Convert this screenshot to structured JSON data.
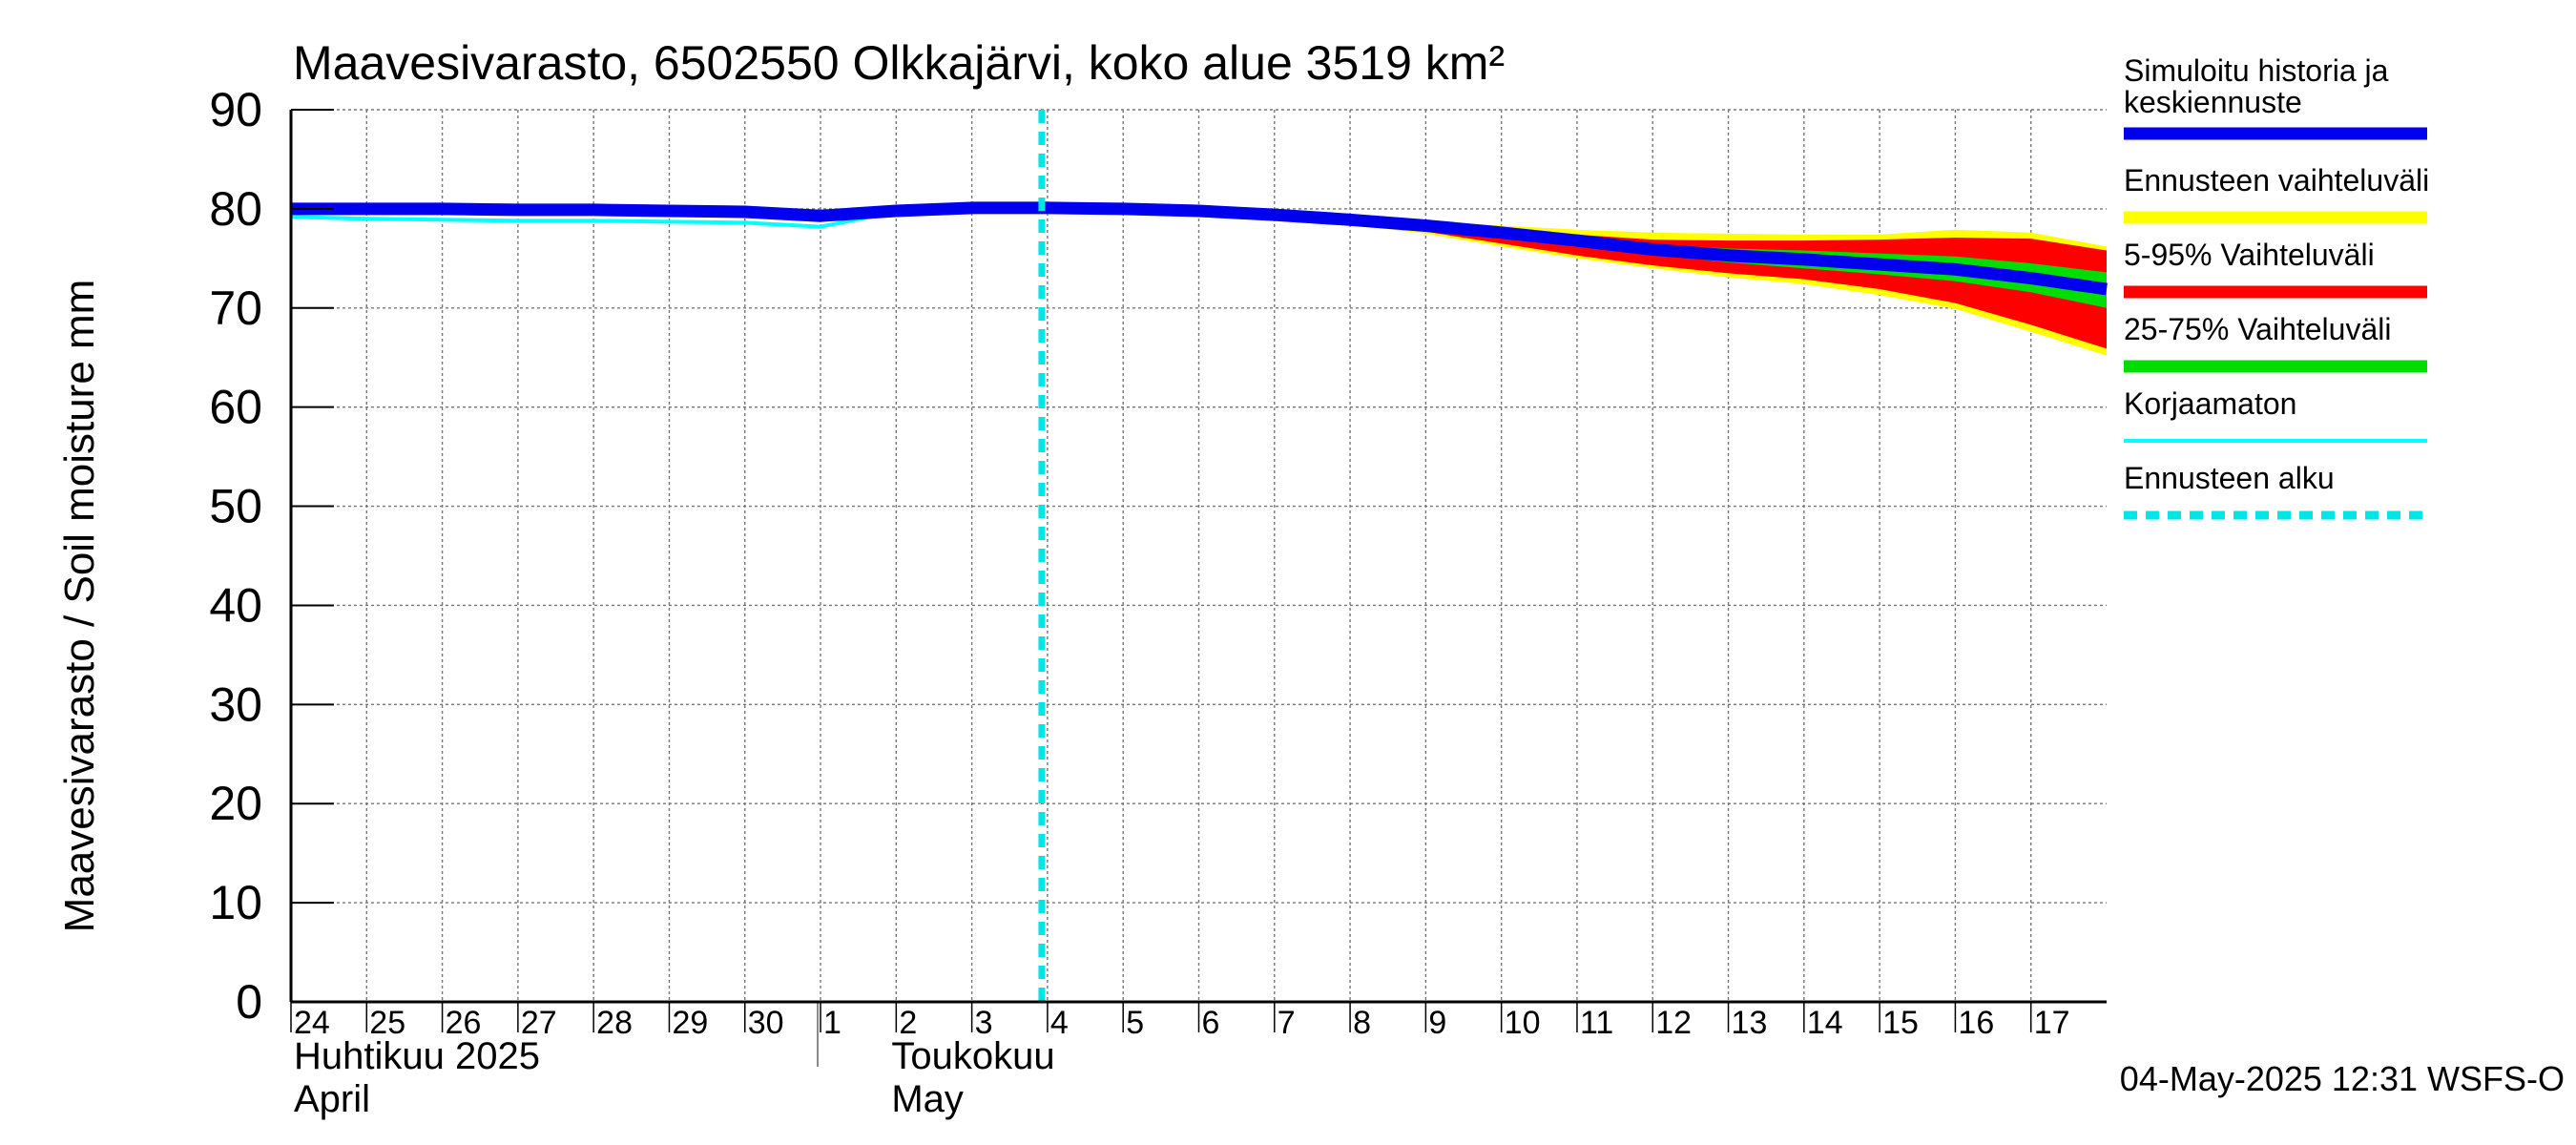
{
  "chart_data": {
    "type": "line",
    "title": "Maavesivarasto, 6502550 Olkkajärvi, koko alue 3519 km²",
    "ylabel": "Maavesivarasto / Soil moisture   mm",
    "ylim": [
      0,
      90
    ],
    "yticks": [
      0,
      10,
      20,
      30,
      40,
      50,
      60,
      70,
      80,
      90
    ],
    "xlim": [
      "2025-04-24",
      "2025-05-18"
    ],
    "grid": true,
    "x_tick_labels": [
      "24",
      "25",
      "26",
      "27",
      "28",
      "29",
      "30",
      "1",
      "2",
      "3",
      "4",
      "5",
      "6",
      "7",
      "8",
      "9",
      "10",
      "11",
      "12",
      "13",
      "14",
      "15",
      "16",
      "17"
    ],
    "month_labels": [
      {
        "fi": "Huhtikuu  2025",
        "en": "April"
      },
      {
        "fi": "Toukokuu",
        "en": "May"
      }
    ],
    "forecast_start": "2025-05-04",
    "legend_position": "right",
    "legend": [
      {
        "label": "Simuloitu historia ja keskiennuste",
        "color": "#0000ee",
        "style": "solid-thick"
      },
      {
        "label": "Ennusteen vaihteluväli",
        "color": "#ffff00",
        "style": "solid-thick"
      },
      {
        "label": "5-95% Vaihteluväli",
        "color": "#ff0000",
        "style": "solid-thick"
      },
      {
        "label": "25-75% Vaihteluväli",
        "color": "#00dd00",
        "style": "solid-thick"
      },
      {
        "label": "Korjaamaton",
        "color": "#00ffff",
        "style": "solid"
      },
      {
        "label": "Ennusteen alku",
        "color": "#00e5e5",
        "style": "dashed"
      }
    ],
    "x": [
      "2025-04-24",
      "2025-04-25",
      "2025-04-26",
      "2025-04-27",
      "2025-04-28",
      "2025-04-29",
      "2025-04-30",
      "2025-05-01",
      "2025-05-02",
      "2025-05-03",
      "2025-05-04",
      "2025-05-05",
      "2025-05-06",
      "2025-05-07",
      "2025-05-08",
      "2025-05-09",
      "2025-05-10",
      "2025-05-11",
      "2025-05-12",
      "2025-05-13",
      "2025-05-14",
      "2025-05-15",
      "2025-05-16",
      "2025-05-17",
      "2025-05-18"
    ],
    "series": [
      {
        "name": "Simuloitu historia ja keskiennuste",
        "values": [
          80.0,
          80.0,
          80.0,
          79.9,
          79.9,
          79.8,
          79.7,
          79.3,
          79.8,
          80.1,
          80.1,
          80.0,
          79.8,
          79.4,
          78.9,
          78.3,
          77.6,
          76.8,
          75.9,
          75.3,
          74.9,
          74.4,
          73.9,
          73.0,
          71.9
        ]
      },
      {
        "name": "Korjaamaton",
        "values": [
          79.2,
          79.0,
          78.9,
          78.8,
          78.8,
          78.7,
          78.6,
          78.2,
          79.7,
          80.0,
          80.1,
          80.0,
          79.8,
          79.4,
          78.9,
          78.3,
          77.6,
          76.8,
          75.9,
          75.3,
          74.9,
          74.4,
          73.9,
          73.0,
          71.9
        ]
      },
      {
        "name": "Ennusteen vaihteluväli (max)",
        "values": [
          null,
          null,
          null,
          null,
          null,
          null,
          null,
          null,
          null,
          null,
          80.2,
          80.1,
          79.9,
          79.6,
          79.2,
          78.8,
          78.3,
          77.9,
          77.6,
          77.5,
          77.4,
          77.4,
          77.9,
          77.6,
          76.2
        ]
      },
      {
        "name": "Ennusteen vaihteluväli (min)",
        "values": [
          null,
          null,
          null,
          null,
          null,
          null,
          null,
          null,
          null,
          null,
          80.0,
          79.9,
          79.6,
          79.2,
          78.4,
          77.5,
          76.2,
          75.0,
          74.0,
          73.1,
          72.4,
          71.3,
          69.9,
          67.6,
          65.2
        ]
      },
      {
        "name": "5-95% (upper)",
        "values": [
          null,
          null,
          null,
          null,
          null,
          null,
          null,
          null,
          null,
          null,
          80.2,
          80.1,
          79.9,
          79.5,
          79.1,
          78.6,
          78.0,
          77.4,
          76.9,
          76.8,
          76.8,
          76.9,
          77.1,
          77.0,
          75.8
        ]
      },
      {
        "name": "5-95% (lower)",
        "values": [
          null,
          null,
          null,
          null,
          null,
          null,
          null,
          null,
          null,
          null,
          80.0,
          79.9,
          79.7,
          79.2,
          78.5,
          77.7,
          76.5,
          75.3,
          74.3,
          73.5,
          72.9,
          71.9,
          70.5,
          68.3,
          65.9
        ]
      },
      {
        "name": "25-75% (upper)",
        "values": [
          null,
          null,
          null,
          null,
          null,
          null,
          null,
          null,
          null,
          null,
          80.1,
          80.0,
          79.8,
          79.4,
          79.0,
          78.5,
          77.8,
          77.1,
          76.4,
          76.0,
          75.8,
          75.5,
          75.2,
          74.5,
          73.6
        ]
      },
      {
        "name": "25-75% (lower)",
        "values": [
          null,
          null,
          null,
          null,
          null,
          null,
          null,
          null,
          null,
          null,
          80.1,
          80.0,
          79.8,
          79.3,
          78.8,
          78.1,
          77.3,
          76.4,
          75.4,
          74.6,
          74.0,
          73.4,
          72.7,
          71.6,
          70.0
        ]
      }
    ]
  },
  "footer": {
    "timestamp": "04-May-2025 12:31 WSFS-O"
  }
}
